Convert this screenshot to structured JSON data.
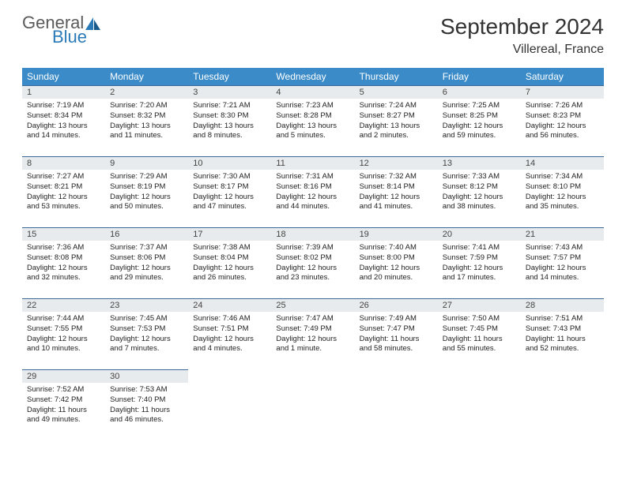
{
  "logo": {
    "text1": "General",
    "text2": "Blue"
  },
  "title": "September 2024",
  "location": "Villereal, France",
  "header_bg": "#3b8bc8",
  "bar_bg": "#e8ebed",
  "rule_color": "#3b6a9a",
  "weekdays": [
    "Sunday",
    "Monday",
    "Tuesday",
    "Wednesday",
    "Thursday",
    "Friday",
    "Saturday"
  ],
  "days": [
    {
      "n": 1,
      "sr": "7:19 AM",
      "ss": "8:34 PM",
      "dl": "13 hours and 14 minutes."
    },
    {
      "n": 2,
      "sr": "7:20 AM",
      "ss": "8:32 PM",
      "dl": "13 hours and 11 minutes."
    },
    {
      "n": 3,
      "sr": "7:21 AM",
      "ss": "8:30 PM",
      "dl": "13 hours and 8 minutes."
    },
    {
      "n": 4,
      "sr": "7:23 AM",
      "ss": "8:28 PM",
      "dl": "13 hours and 5 minutes."
    },
    {
      "n": 5,
      "sr": "7:24 AM",
      "ss": "8:27 PM",
      "dl": "13 hours and 2 minutes."
    },
    {
      "n": 6,
      "sr": "7:25 AM",
      "ss": "8:25 PM",
      "dl": "12 hours and 59 minutes."
    },
    {
      "n": 7,
      "sr": "7:26 AM",
      "ss": "8:23 PM",
      "dl": "12 hours and 56 minutes."
    },
    {
      "n": 8,
      "sr": "7:27 AM",
      "ss": "8:21 PM",
      "dl": "12 hours and 53 minutes."
    },
    {
      "n": 9,
      "sr": "7:29 AM",
      "ss": "8:19 PM",
      "dl": "12 hours and 50 minutes."
    },
    {
      "n": 10,
      "sr": "7:30 AM",
      "ss": "8:17 PM",
      "dl": "12 hours and 47 minutes."
    },
    {
      "n": 11,
      "sr": "7:31 AM",
      "ss": "8:16 PM",
      "dl": "12 hours and 44 minutes."
    },
    {
      "n": 12,
      "sr": "7:32 AM",
      "ss": "8:14 PM",
      "dl": "12 hours and 41 minutes."
    },
    {
      "n": 13,
      "sr": "7:33 AM",
      "ss": "8:12 PM",
      "dl": "12 hours and 38 minutes."
    },
    {
      "n": 14,
      "sr": "7:34 AM",
      "ss": "8:10 PM",
      "dl": "12 hours and 35 minutes."
    },
    {
      "n": 15,
      "sr": "7:36 AM",
      "ss": "8:08 PM",
      "dl": "12 hours and 32 minutes."
    },
    {
      "n": 16,
      "sr": "7:37 AM",
      "ss": "8:06 PM",
      "dl": "12 hours and 29 minutes."
    },
    {
      "n": 17,
      "sr": "7:38 AM",
      "ss": "8:04 PM",
      "dl": "12 hours and 26 minutes."
    },
    {
      "n": 18,
      "sr": "7:39 AM",
      "ss": "8:02 PM",
      "dl": "12 hours and 23 minutes."
    },
    {
      "n": 19,
      "sr": "7:40 AM",
      "ss": "8:00 PM",
      "dl": "12 hours and 20 minutes."
    },
    {
      "n": 20,
      "sr": "7:41 AM",
      "ss": "7:59 PM",
      "dl": "12 hours and 17 minutes."
    },
    {
      "n": 21,
      "sr": "7:43 AM",
      "ss": "7:57 PM",
      "dl": "12 hours and 14 minutes."
    },
    {
      "n": 22,
      "sr": "7:44 AM",
      "ss": "7:55 PM",
      "dl": "12 hours and 10 minutes."
    },
    {
      "n": 23,
      "sr": "7:45 AM",
      "ss": "7:53 PM",
      "dl": "12 hours and 7 minutes."
    },
    {
      "n": 24,
      "sr": "7:46 AM",
      "ss": "7:51 PM",
      "dl": "12 hours and 4 minutes."
    },
    {
      "n": 25,
      "sr": "7:47 AM",
      "ss": "7:49 PM",
      "dl": "12 hours and 1 minute."
    },
    {
      "n": 26,
      "sr": "7:49 AM",
      "ss": "7:47 PM",
      "dl": "11 hours and 58 minutes."
    },
    {
      "n": 27,
      "sr": "7:50 AM",
      "ss": "7:45 PM",
      "dl": "11 hours and 55 minutes."
    },
    {
      "n": 28,
      "sr": "7:51 AM",
      "ss": "7:43 PM",
      "dl": "11 hours and 52 minutes."
    },
    {
      "n": 29,
      "sr": "7:52 AM",
      "ss": "7:42 PM",
      "dl": "11 hours and 49 minutes."
    },
    {
      "n": 30,
      "sr": "7:53 AM",
      "ss": "7:40 PM",
      "dl": "11 hours and 46 minutes."
    }
  ],
  "labels": {
    "sunrise": "Sunrise:",
    "sunset": "Sunset:",
    "daylight": "Daylight:"
  }
}
